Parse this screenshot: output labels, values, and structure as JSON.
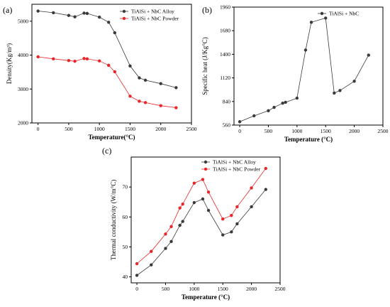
{
  "colors": {
    "alloy": "#3a3a3a",
    "powder": "#e8262a",
    "specific_heat": "#3a3a3a"
  },
  "chart_data": [
    {
      "id": "a",
      "panel_label": "(a)",
      "type": "line",
      "xlabel": "Temperature(°C)",
      "ylabel": "Density(Kg/m³)",
      "xlim": [
        -100,
        2500
      ],
      "ylim": [
        2000,
        5500
      ],
      "xticks": [
        0,
        500,
        1000,
        1500,
        2000,
        2500
      ],
      "yticks": [
        2000,
        3000,
        4000,
        5000
      ],
      "legend_position": "top-right",
      "series": [
        {
          "name": "TiAlSi + NbC Alloy",
          "color_key": "alloy",
          "x": [
            0,
            250,
            500,
            600,
            750,
            800,
            1000,
            1150,
            1250,
            1500,
            1650,
            1750,
            2000,
            2250
          ],
          "y": [
            5300,
            5250,
            5170,
            5130,
            5240,
            5230,
            5120,
            4970,
            4660,
            3680,
            3330,
            3260,
            3160,
            3040
          ]
        },
        {
          "name": "TiAlSi + NbC Powder",
          "color_key": "powder",
          "x": [
            0,
            250,
            500,
            600,
            750,
            800,
            1000,
            1150,
            1250,
            1500,
            1650,
            1750,
            2000,
            2250
          ],
          "y": [
            3950,
            3890,
            3840,
            3820,
            3900,
            3890,
            3830,
            3700,
            3510,
            2790,
            2640,
            2600,
            2510,
            2450
          ]
        }
      ]
    },
    {
      "id": "b",
      "panel_label": "(b)",
      "type": "line",
      "xlabel": "Temperature (°C)",
      "ylabel": "Specific heat (J/Kg°C)",
      "xlim": [
        -100,
        2500
      ],
      "ylim": [
        560,
        1960
      ],
      "xticks": [
        0,
        500,
        1000,
        1500,
        2000,
        2500
      ],
      "yticks": [
        560,
        840,
        1120,
        1400,
        1680,
        1960
      ],
      "legend_position": "top-right",
      "series": [
        {
          "name": "TiAlSi + NbC",
          "color_key": "specific_heat",
          "x": [
            0,
            250,
            500,
            600,
            750,
            800,
            1000,
            1150,
            1250,
            1500,
            1650,
            1750,
            2000,
            2250
          ],
          "y": [
            600,
            670,
            730,
            770,
            820,
            830,
            880,
            1450,
            1780,
            1830,
            940,
            970,
            1080,
            1390
          ]
        }
      ]
    },
    {
      "id": "c",
      "panel_label": "(c)",
      "type": "line",
      "xlabel": "Temperature (°C)",
      "ylabel": "Thermal conductivity (W/m°C)",
      "xlim": [
        -100,
        2500
      ],
      "ylim": [
        38,
        80
      ],
      "xticks": [
        0,
        500,
        1000,
        1500,
        2000,
        2500
      ],
      "yticks": [
        40,
        50,
        60,
        70
      ],
      "legend_position": "top-left",
      "series": [
        {
          "name": "TiAlSi + NbC Alloy",
          "color_key": "alloy",
          "x": [
            0,
            250,
            500,
            600,
            750,
            800,
            1000,
            1150,
            1250,
            1500,
            1650,
            1750,
            2000,
            2250
          ],
          "y": [
            40.5,
            44.0,
            49.5,
            51.8,
            57.2,
            58.5,
            64.8,
            66.0,
            62.2,
            54.0,
            55.0,
            57.7,
            63.4,
            69.2
          ]
        },
        {
          "name": "TiAlSi + NbC Powder",
          "color_key": "powder",
          "x": [
            0,
            250,
            500,
            600,
            750,
            800,
            1000,
            1150,
            1250,
            1500,
            1650,
            1750,
            2000,
            2250
          ],
          "y": [
            44.4,
            48.5,
            54.3,
            56.8,
            63.0,
            64.3,
            71.3,
            72.5,
            68.3,
            59.3,
            60.5,
            63.4,
            69.7,
            76.2
          ]
        }
      ]
    }
  ]
}
